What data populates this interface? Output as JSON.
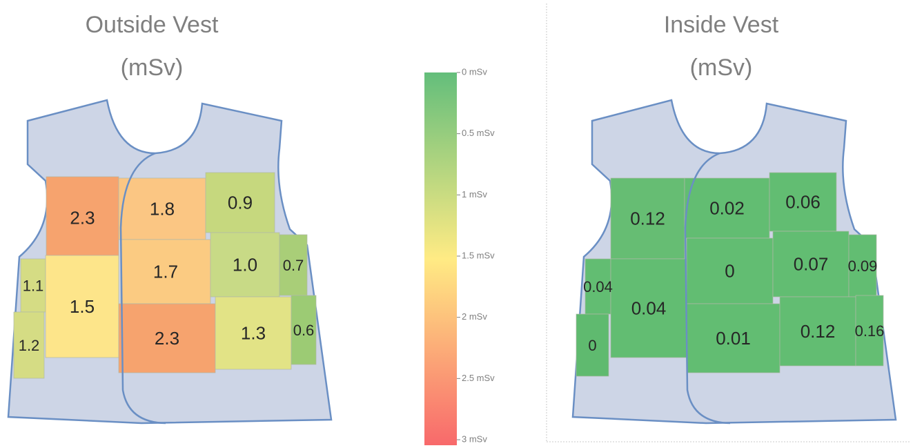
{
  "outside_vest": {
    "title": "Outside Vest",
    "unit": "(mSv)",
    "regions": [
      {
        "label": "2.3",
        "color": "#f6a36e"
      },
      {
        "label": "1.8",
        "color": "#fbc683"
      },
      {
        "label": "0.9",
        "color": "#c6d87e"
      },
      {
        "label": "1.7",
        "color": "#fbcb82"
      },
      {
        "label": "1.0",
        "color": "#c8da86"
      },
      {
        "label": "0.7",
        "color": "#a9ce78"
      },
      {
        "label": "1.1",
        "color": "#d5dc84"
      },
      {
        "label": "1.5",
        "color": "#fde58a"
      },
      {
        "label": "2.3",
        "color": "#f6a36e"
      },
      {
        "label": "1.3",
        "color": "#e2e386"
      },
      {
        "label": "0.6",
        "color": "#9ccb74"
      },
      {
        "label": "1.2",
        "color": "#d5dc84"
      }
    ]
  },
  "colorbar": {
    "labels": [
      "0 mSv",
      "0.5 mSv",
      "1 mSv",
      "1.5 mSv",
      "2 mSv",
      "2.5 mSv",
      "3 mSv"
    ]
  },
  "inside_vest": {
    "title": "Inside Vest",
    "unit": "(mSv)",
    "regions": [
      {
        "label": "0.12",
        "color": "#66bd73"
      },
      {
        "label": "0.02",
        "color": "#62bd72"
      },
      {
        "label": "0.06",
        "color": "#62bd72"
      },
      {
        "label": "0",
        "color": "#62bd72"
      },
      {
        "label": "0.07",
        "color": "#62bd72"
      },
      {
        "label": "0.09",
        "color": "#62bd72"
      },
      {
        "label": "0.04",
        "color": "#62bd72"
      },
      {
        "label": "0.04",
        "color": "#62bd72"
      },
      {
        "label": "0.01",
        "color": "#62bd72"
      },
      {
        "label": "0.12",
        "color": "#62bd72"
      },
      {
        "label": "0.16",
        "color": "#64be73"
      },
      {
        "label": "0",
        "color": "#5fba6f"
      }
    ]
  }
}
